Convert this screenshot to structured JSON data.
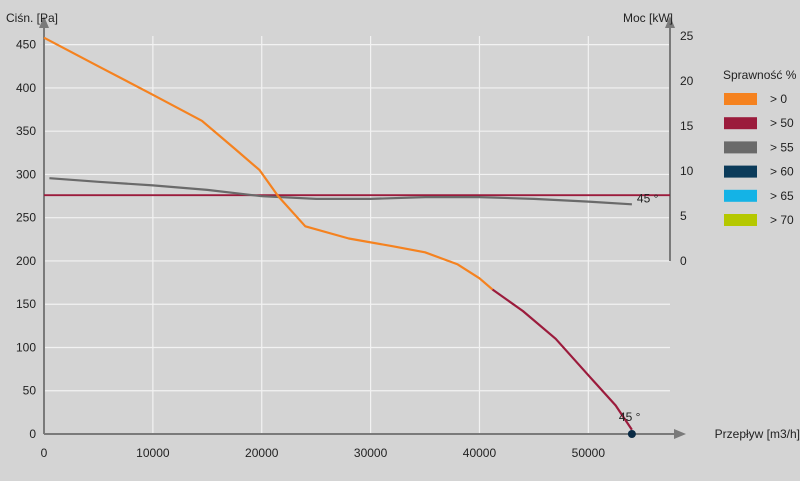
{
  "chart_data": {
    "type": "line",
    "xlabel": "Przepływ [m3/h]",
    "ylabel": "Ciśn. [Pa]",
    "y2label": "Moc [kW]",
    "xlim": [
      0,
      57500
    ],
    "ylim": [
      0,
      460
    ],
    "y2lim": [
      0,
      25
    ],
    "x_ticks": [
      0,
      10000,
      20000,
      30000,
      40000,
      50000
    ],
    "y_ticks": [
      0,
      50,
      100,
      150,
      200,
      250,
      300,
      350,
      400,
      450
    ],
    "y2_ticks": [
      0,
      5,
      10,
      15,
      20,
      25
    ],
    "grid": true,
    "legend": {
      "title": "Sprawność %",
      "position": "right",
      "items": [
        {
          "label": "> 0",
          "color": "#f5821f"
        },
        {
          "label": "> 50",
          "color": "#9b1b3c"
        },
        {
          "label": "> 55",
          "color": "#6a6a6a"
        },
        {
          "label": "> 60",
          "color": "#0b3b5a"
        },
        {
          "label": "> 65",
          "color": "#14b3e6"
        },
        {
          "label": "> 70",
          "color": "#b5c800"
        }
      ]
    },
    "pressure_curve": {
      "annotation": "45 °",
      "segments": [
        {
          "color": "#f5821f",
          "points": [
            [
              0,
              458
            ],
            [
              5000,
              425
            ],
            [
              10000,
              392
            ],
            [
              14500,
              362
            ],
            [
              17500,
              330
            ],
            [
              19800,
              305
            ],
            [
              21500,
              275
            ],
            [
              24000,
              240
            ],
            [
              28000,
              226
            ],
            [
              32000,
              217
            ],
            [
              35000,
              210
            ],
            [
              38000,
              196
            ],
            [
              40000,
              180
            ],
            [
              41200,
              167
            ]
          ]
        },
        {
          "color": "#9b1b3c",
          "points": [
            [
              41200,
              167
            ],
            [
              44000,
              142
            ],
            [
              47000,
              110
            ],
            [
              50000,
              68
            ],
            [
              52500,
              33
            ],
            [
              54000,
              5
            ]
          ]
        }
      ],
      "operating_point": [
        54000,
        0
      ]
    },
    "power_curve": {
      "annotation": "45 °",
      "color": "#6a6a6a",
      "points": [
        [
          500,
          9.2
        ],
        [
          5000,
          8.8
        ],
        [
          10000,
          8.4
        ],
        [
          15000,
          7.9
        ],
        [
          20000,
          7.2
        ],
        [
          25000,
          6.9
        ],
        [
          30000,
          6.9
        ],
        [
          35000,
          7.1
        ],
        [
          40000,
          7.1
        ],
        [
          45000,
          6.9
        ],
        [
          50000,
          6.6
        ],
        [
          54000,
          6.3
        ]
      ]
    },
    "reference_line": {
      "color": "#9b1b3c",
      "y": 276
    }
  }
}
